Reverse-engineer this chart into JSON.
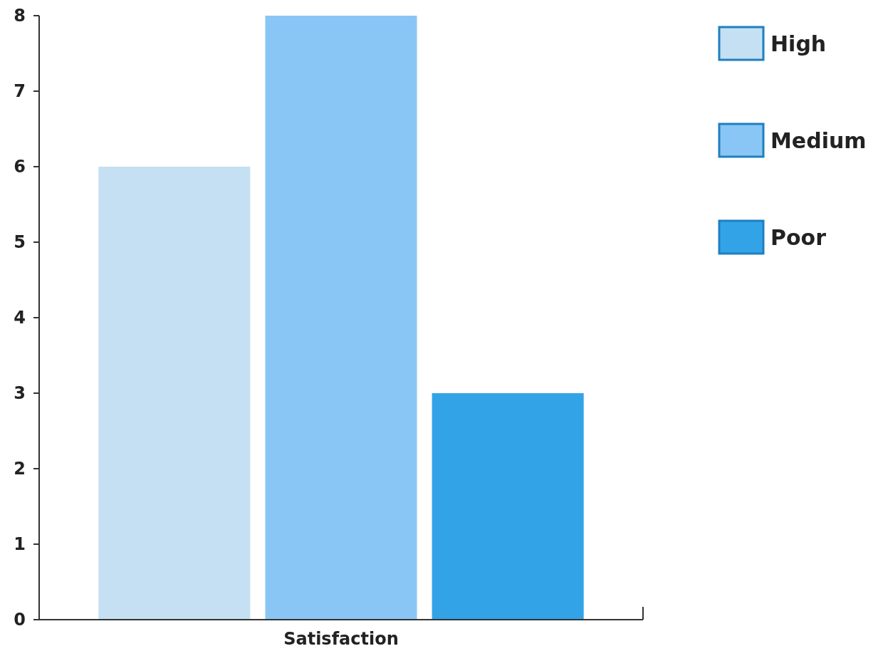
{
  "chart_data": {
    "type": "bar",
    "categories": [
      "Satisfaction"
    ],
    "series": [
      {
        "name": "High",
        "color": "#c5e0f2",
        "values": [
          6
        ]
      },
      {
        "name": "Medium",
        "color": "#8ac6f5",
        "values": [
          8
        ]
      },
      {
        "name": "Poor",
        "color": "#33a3e8",
        "values": [
          3
        ]
      }
    ],
    "ylim": [
      0,
      8
    ],
    "yticks": [
      0,
      1,
      2,
      3,
      4,
      5,
      6,
      7,
      8
    ],
    "grid": false,
    "legend": "right"
  }
}
